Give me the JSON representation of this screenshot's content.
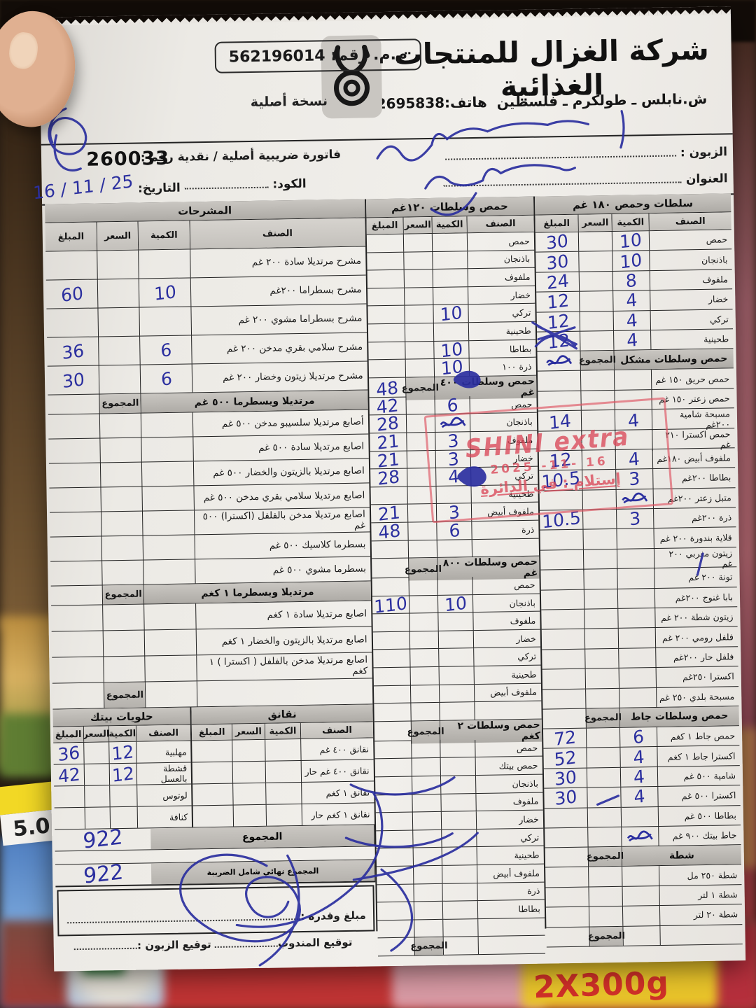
{
  "photo": {
    "price_tag": "5.0",
    "package_label": "2X300g"
  },
  "header": {
    "company": "شركة الغزال للمنتجات الغذائية",
    "address": "ش.نابلس ـ طولكرم ـ فلسطين",
    "phone_label": "هاتف:",
    "phone": "09-2695838",
    "tax_label": "م.م. رقم:",
    "tax_number": "562196014",
    "copy_note": "نسخة أصلية"
  },
  "meta": {
    "invoice_line": "فاتورة ضريبية أصلية / نقدية  رقم :",
    "serial": "260033",
    "customer_label": "الزبون :",
    "address_label": "العنوان",
    "code_label": "الكود:",
    "date_label": "التاريخ:",
    "date_value": "16 / 11 / 25"
  },
  "stamp": {
    "line1": "SHINI extra",
    "date": "16 -11- 2025",
    "line2": "إستلام : في الدائرة"
  },
  "table_headers": {
    "item": "الصنف",
    "qty": "الكمية",
    "price": "السعر",
    "amount": "المبلغ",
    "total": "المجموع"
  },
  "totals": {
    "subtotal": "922",
    "final_label": "المجموع نهائي شامل الضريبة",
    "final": "922"
  },
  "signature": {
    "amount_label": "مبلغ وقدره :",
    "rep_label": "توقيع المندوب",
    "customer_label": "توقيع الزبون :"
  },
  "columns": {
    "right": [
      {
        "title": "سلطات وحمص ١٨٠ غم",
        "with_headers": true,
        "rows": [
          [
            "حمص",
            "10",
            "",
            "30"
          ],
          [
            "باذنجان",
            "10",
            "",
            "30"
          ],
          [
            "ملفوف",
            "8",
            "",
            "24"
          ],
          [
            "خضار",
            "4",
            "",
            "12"
          ],
          [
            "تركي",
            "4",
            "",
            "12"
          ],
          [
            "طحينية",
            "4",
            "",
            "12"
          ]
        ]
      },
      {
        "title": "حمص وسلطات مشكل",
        "total_in_title": true,
        "title_total_value": "#s",
        "rows": [
          [
            "حمص حريق ١٥٠ غم",
            "",
            "",
            ""
          ],
          [
            "حمص زعتر ١٥٠ غم",
            "",
            "",
            ""
          ],
          [
            "مسبحة شامية ٢٠٠غم",
            "4",
            "",
            "14"
          ],
          [
            "حمص اكسترا ٢١٠ غم",
            "",
            "",
            ""
          ],
          [
            "ملفوف أبيض ١٨٠غم",
            "4",
            "",
            "12"
          ],
          [
            "بطاطا ٢٠٠غم",
            "3",
            "",
            "10.5"
          ],
          [
            "متبل زعتر ٢٠٠غم",
            "#s",
            "",
            ""
          ],
          [
            "ذرة ٢٠٠غم",
            "3",
            "",
            "10.5"
          ],
          [
            "قلاية بندورة ٢٠٠ غم",
            "",
            "",
            ""
          ],
          [
            "زيتون مغربي ٢٠٠ غم",
            "",
            "",
            ""
          ],
          [
            "تونة ٢٠٠ غم",
            "",
            "",
            ""
          ],
          [
            "بابا غنوج ٢٠٠غم",
            "",
            "",
            ""
          ],
          [
            "زيتون شطة ٢٠٠ غم",
            "",
            "",
            ""
          ],
          [
            "فلفل رومي ٢٠٠ غم",
            "",
            "",
            ""
          ],
          [
            "فلفل حار ٢٠٠غم",
            "",
            "",
            ""
          ],
          [
            "اكسترا ٢٥٠غم",
            "",
            "",
            ""
          ],
          [
            "مسبحة بلدي ٢٥٠ غم",
            "",
            "",
            ""
          ]
        ]
      },
      {
        "title": "حمص وسلطات جاط",
        "total_in_title": true,
        "title_total_value": "",
        "rows": [
          [
            "حمص جاط ١ كغم",
            "6",
            "",
            "72"
          ],
          [
            "اكسترا جاط ١ كغم",
            "4",
            "",
            "52"
          ],
          [
            "شامية ٥٠٠ غم",
            "4",
            "",
            "30"
          ],
          [
            "اكسترا ٥٠٠ غم",
            "4",
            "",
            "30"
          ],
          [
            "بطاطا ٥٠٠ غم",
            "",
            "",
            ""
          ],
          [
            "جاط بيتك ٩٠٠ غم",
            "#s",
            "",
            ""
          ]
        ]
      },
      {
        "title": "شطة",
        "total_in_title": true,
        "title_total_value": "",
        "rows": [
          [
            "شطة ٢٥٠ مل",
            "",
            "",
            ""
          ],
          [
            "شطة ١ لتر",
            "",
            "",
            ""
          ],
          [
            "شطة ٢٠ لتر",
            "",
            "",
            ""
          ]
        ],
        "end_total": true
      }
    ],
    "middle": [
      {
        "title": "حمص وسلطات ١٢٠غم",
        "with_headers": true,
        "rows": [
          [
            "حمص",
            "",
            "",
            ""
          ],
          [
            "باذنجان",
            "",
            "",
            ""
          ],
          [
            "ملفوف",
            "",
            "",
            ""
          ],
          [
            "خضار",
            "",
            "",
            ""
          ],
          [
            "تركي",
            "10",
            "",
            ""
          ],
          [
            "طحينية",
            "",
            "",
            ""
          ],
          [
            "بطاطا",
            "10",
            "",
            ""
          ],
          [
            "ذرة ١٠٠",
            "10",
            "",
            ""
          ]
        ]
      },
      {
        "title": "حمص وسلطات ٤٠٠ غم",
        "total_in_title": true,
        "title_total_value": "48",
        "rows": [
          [
            "حمص",
            "6",
            "",
            "42"
          ],
          [
            "باذنجان",
            "#s",
            "",
            "28"
          ],
          [
            "ملفوف",
            "3",
            "",
            "21"
          ],
          [
            "خضار",
            "3",
            "",
            "21"
          ],
          [
            "تركي",
            "4",
            "",
            "28"
          ],
          [
            "طحينية",
            "",
            "",
            ""
          ],
          [
            "ملفوف أبيض",
            "3",
            "",
            "21"
          ],
          [
            "ذرة",
            "6",
            "",
            "48"
          ],
          [
            "",
            "",
            "",
            ""
          ]
        ]
      },
      {
        "title": "حمص وسلطات ٨٠٠ غم",
        "total_in_title": true,
        "title_total_value": "",
        "rows": [
          [
            "حمص",
            "",
            "",
            ""
          ],
          [
            "باذنجان",
            "10",
            "",
            "110"
          ],
          [
            "ملفوف",
            "",
            "",
            ""
          ],
          [
            "خضار",
            "",
            "",
            ""
          ],
          [
            "تركي",
            "",
            "",
            ""
          ],
          [
            "طحينية",
            "",
            "",
            ""
          ],
          [
            "ملفوف أبيض",
            "",
            "",
            ""
          ],
          [
            "",
            "",
            "",
            ""
          ]
        ]
      },
      {
        "title": "حمص وسلطات ٢ كغم",
        "total_in_title": true,
        "title_total_value": "",
        "rows": [
          [
            "حمص",
            "",
            "",
            ""
          ],
          [
            "حمص بيتك",
            "",
            "",
            ""
          ],
          [
            "باذنجان",
            "",
            "",
            ""
          ],
          [
            "ملفوف",
            "",
            "",
            ""
          ],
          [
            "خضار",
            "",
            "",
            ""
          ],
          [
            "تركي",
            "",
            "",
            ""
          ],
          [
            "طحينية",
            "",
            "",
            ""
          ],
          [
            "ملفوف أبيض",
            "",
            "",
            ""
          ],
          [
            "ذرة",
            "",
            "",
            ""
          ],
          [
            "بطاطا",
            "",
            "",
            ""
          ],
          [
            "",
            "",
            "",
            ""
          ]
        ],
        "end_total": true
      }
    ],
    "left": [
      {
        "title": "المشرحات",
        "with_headers": true,
        "row_class": "rows-lg",
        "rows": [
          [
            "مشرح مرتديلا سادة ٢٠٠ غم",
            "",
            "",
            ""
          ],
          [
            "مشرح بسطراما ٢٠٠غم",
            "10",
            "",
            "60"
          ],
          [
            "مشرح بسطراما مشوي ٢٠٠ غم",
            "",
            "",
            ""
          ],
          [
            "مشرح سلامي بقري مدخن ٢٠٠ غم",
            "6",
            "",
            "36"
          ],
          [
            "مشرح مرتديلا زيتون وخضار ٢٠٠ غم",
            "6",
            "",
            "30"
          ]
        ]
      },
      {
        "title": "مرتديلا وبسطرما ٥٠٠ غم",
        "total_in_title": true,
        "title_total_value": "",
        "row_class": "rows-md",
        "rows": [
          [
            "أصابع مرتديلا سلسيبو مدخن ٥٠٠ غم",
            "",
            "",
            ""
          ],
          [
            "اصابع مرتديلا سادة ٥٠٠ غم",
            "",
            "",
            ""
          ],
          [
            "اصابع مرتديلا بالزيتون والخضار ٥٠٠ غم",
            "",
            "",
            ""
          ],
          [
            "اصابع مرتديلا سلامي بقري مدخن ٥٠٠ غم",
            "",
            "",
            ""
          ],
          [
            "اصابع مرتديلا مدخن بالفلفل (اكسترا) ٥٠٠ غم",
            "",
            "",
            ""
          ],
          [
            "بسطرما كلاسيك ٥٠٠ غم",
            "",
            "",
            ""
          ],
          [
            "بسطرما مشوي ٥٠٠ غم",
            "",
            "",
            ""
          ]
        ]
      },
      {
        "title": "مرتديلا وبسطرما ١ كغم",
        "total_in_title": true,
        "title_total_value": "",
        "row_class": "rows-sm",
        "rows": [
          [
            "اصابع مرتديلا سادة ١ كغم",
            "",
            "",
            ""
          ],
          [
            "اصابع مرتديلا بالزيتون والخضار ١ كغم",
            "",
            "",
            ""
          ],
          [
            "اصابع مرتديلا مدخن بالفلفل ( اكسترا ) ١ كغم",
            "",
            "",
            ""
          ]
        ],
        "end_total": true
      }
    ],
    "dual": [
      {
        "title": "نقانق",
        "rows": [
          [
            "نقانق ٤٠٠ غم",
            "",
            "",
            ""
          ],
          [
            "نقانق ٤٠٠ غم حار",
            "",
            "",
            ""
          ],
          [
            "نقانق ١ كغم",
            "",
            "",
            ""
          ],
          [
            "نقانق ١ كغم حار",
            "",
            "",
            ""
          ]
        ]
      },
      {
        "title": "حلويات بيتك",
        "rows": [
          [
            "مهلبية",
            "12",
            "",
            "36"
          ],
          [
            "قشطة بالعسل",
            "12",
            "",
            "42"
          ],
          [
            "لوتوس",
            "",
            "",
            ""
          ],
          [
            "كنافة",
            "",
            "",
            ""
          ]
        ]
      }
    ]
  }
}
